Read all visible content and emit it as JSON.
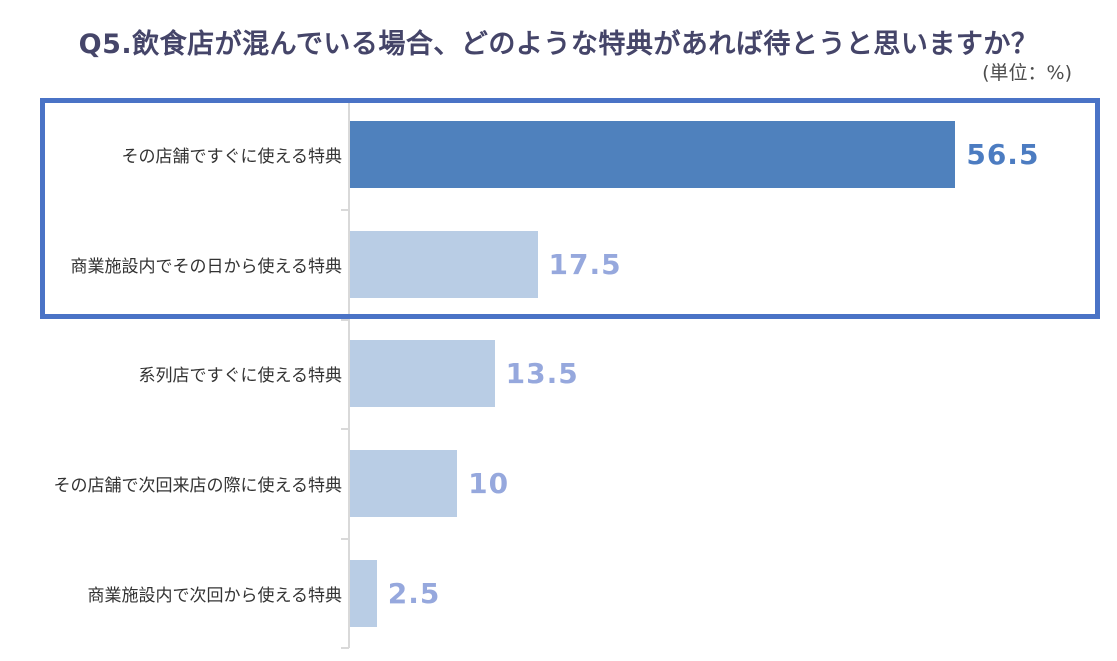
{
  "title": "Q5.飲食店が混んでいる場合、どのような特典があれば待とうと思いますか？",
  "unit_label": "(単位：%)",
  "chart_data": {
    "type": "bar",
    "orientation": "horizontal",
    "title": "Q5.飲食店が混んでいる場合、どのような特典があれば待とうと思いますか？",
    "unit": "%",
    "categories": [
      "その店舗ですぐに使える特典",
      "商業施設内でその日から使える特典",
      "系列店ですぐに使える特典",
      "その店舗で次回来店の際に使える特典",
      "商業施設内で次回から使える特典"
    ],
    "values": [
      56.5,
      17.5,
      13.5,
      10,
      2.5
    ],
    "value_labels": [
      "56.5",
      "17.5",
      "13.5",
      "10",
      "2.5"
    ],
    "xlim": [
      0,
      70
    ],
    "grid": false,
    "legend": false,
    "highlighted_rows": [
      0,
      1
    ]
  },
  "colors": {
    "bar_primary": "#4F81BD",
    "bar_secondary": "#B9CDE5",
    "value_primary": "#4C7CC1",
    "value_secondary": "#96A8DD",
    "title": "#454569",
    "unit": "#4D4D4D",
    "axis": "#D9D9D9",
    "highlight_border": "#4A73C6"
  }
}
